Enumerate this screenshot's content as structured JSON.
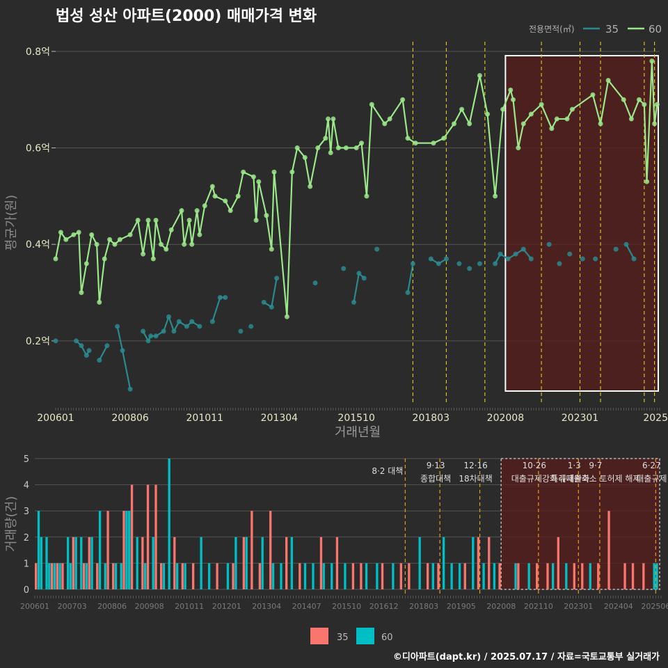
{
  "title": "법성 성산 아파트(2000) 매매가격 변화",
  "footer": "©디아파트(dapt.kr) / 2025.07.17 / 자료=국토교통부 실거래가",
  "colors": {
    "bg": "#2b2b2b",
    "grid": "#555555",
    "s35": "#2a8a8f",
    "s60": "#9be88a",
    "bar35": "#f8766d",
    "bar60": "#00bfc4",
    "policy": "#d4c11f",
    "highlight": "#5a1e1e"
  },
  "chart_data": [
    {
      "type": "line",
      "title": "법성 성산 아파트(2000) 매매가격 변화",
      "xlabel": "거래년월",
      "ylabel": "평균가(원)",
      "ylim": [
        0.07,
        0.82
      ],
      "yticks": [
        0.2,
        0.4,
        0.6,
        0.8
      ],
      "ytick_labels": [
        "0.2억",
        "0.4억",
        "0.6억",
        "0.8억"
      ],
      "xlim": [
        "2006-01",
        "2025-07"
      ],
      "xticks": [
        "2006-01",
        "2008-06",
        "2010-11",
        "2013-04",
        "2015-10",
        "2018-03",
        "2020-08",
        "2023-01",
        "2025-06"
      ],
      "xtick_labels": [
        "200601",
        "200806",
        "201011",
        "201304",
        "201510",
        "201803",
        "202008",
        "202301",
        "2025"
      ],
      "legend": {
        "title": "전용면적(㎡)",
        "position": "top-right",
        "entries": [
          "35",
          "60"
        ]
      },
      "policy_lines": [
        "2017-08",
        "2018-09",
        "2019-12",
        "2021-10",
        "2023-01",
        "2023-09",
        "2025-02",
        "2025-06"
      ],
      "highlight_range": [
        "2020-08",
        "2025-07"
      ],
      "series": [
        {
          "name": "60",
          "points": [
            [
              "2006-01",
              0.37
            ],
            [
              "2006-03",
              0.425
            ],
            [
              "2006-05",
              0.41
            ],
            [
              "2006-08",
              0.42
            ],
            [
              "2006-10",
              0.425
            ],
            [
              "2006-11",
              0.3
            ],
            [
              "2007-01",
              0.36
            ],
            [
              "2007-03",
              0.42
            ],
            [
              "2007-05",
              0.4
            ],
            [
              "2007-06",
              0.28
            ],
            [
              "2007-08",
              0.37
            ],
            [
              "2007-10",
              0.41
            ],
            [
              "2007-12",
              0.4
            ],
            [
              "2008-02",
              0.41
            ],
            [
              "2008-06",
              0.42
            ],
            [
              "2008-09",
              0.45
            ],
            [
              "2008-11",
              0.38
            ],
            [
              "2009-01",
              0.45
            ],
            [
              "2009-03",
              0.37
            ],
            [
              "2009-04",
              0.45
            ],
            [
              "2009-06",
              0.4
            ],
            [
              "2009-08",
              0.39
            ],
            [
              "2009-10",
              0.43
            ],
            [
              "2010-02",
              0.47
            ],
            [
              "2010-03",
              0.4
            ],
            [
              "2010-05",
              0.45
            ],
            [
              "2010-06",
              0.4
            ],
            [
              "2010-08",
              0.47
            ],
            [
              "2010-09",
              0.42
            ],
            [
              "2010-11",
              0.48
            ],
            [
              "2011-02",
              0.52
            ],
            [
              "2011-03",
              0.5
            ],
            [
              "2011-07",
              0.49
            ],
            [
              "2011-09",
              0.47
            ],
            [
              "2011-12",
              0.5
            ],
            [
              "2012-02",
              0.55
            ],
            [
              "2012-06",
              0.54
            ],
            [
              "2012-07",
              0.45
            ],
            [
              "2012-08",
              0.53
            ],
            [
              "2012-11",
              0.46
            ],
            [
              "2013-01",
              0.39
            ],
            [
              "2013-02",
              0.55
            ],
            [
              "2013-07",
              0.25
            ],
            [
              "2013-09",
              0.55
            ],
            [
              "2013-11",
              0.6
            ],
            [
              "2014-02",
              0.58
            ],
            [
              "2014-04",
              0.52
            ],
            [
              "2014-07",
              0.6
            ],
            [
              "2014-10",
              0.62
            ],
            [
              "2014-11",
              0.66
            ],
            [
              "2014-12",
              0.59
            ],
            [
              "2015-01",
              0.66
            ],
            [
              "2015-03",
              0.6
            ],
            [
              "2015-06",
              0.6
            ],
            [
              "2015-10",
              0.6
            ],
            [
              "2015-12",
              0.61
            ],
            [
              "2016-02",
              0.5
            ],
            [
              "2016-04",
              0.69
            ],
            [
              "2016-09",
              0.65
            ],
            [
              "2016-11",
              0.66
            ],
            [
              "2017-04",
              0.7
            ],
            [
              "2017-06",
              0.62
            ],
            [
              "2017-09",
              0.61
            ],
            [
              "2018-04",
              0.61
            ],
            [
              "2018-08",
              0.62
            ],
            [
              "2018-12",
              0.65
            ],
            [
              "2019-03",
              0.68
            ],
            [
              "2019-06",
              0.65
            ],
            [
              "2019-10",
              0.75
            ],
            [
              "2020-01",
              0.67
            ],
            [
              "2020-04",
              0.5
            ],
            [
              "2020-07",
              0.68
            ],
            [
              "2020-10",
              0.72
            ],
            [
              "2020-11",
              0.7
            ],
            [
              "2021-01",
              0.6
            ],
            [
              "2021-03",
              0.65
            ],
            [
              "2021-06",
              0.67
            ],
            [
              "2021-10",
              0.69
            ],
            [
              "2022-02",
              0.64
            ],
            [
              "2022-04",
              0.66
            ],
            [
              "2022-08",
              0.66
            ],
            [
              "2022-10",
              0.68
            ],
            [
              "2023-06",
              0.71
            ],
            [
              "2023-09",
              0.65
            ],
            [
              "2023-12",
              0.74
            ],
            [
              "2024-06",
              0.7
            ],
            [
              "2024-09",
              0.66
            ],
            [
              "2024-12",
              0.7
            ],
            [
              "2025-02",
              0.69
            ],
            [
              "2025-03",
              0.53
            ],
            [
              "2025-05",
              0.78
            ],
            [
              "2025-06",
              0.65
            ],
            [
              "2025-07",
              0.69
            ]
          ]
        },
        {
          "name": "35",
          "points": [
            [
              "2006-01",
              0.2
            ],
            [
              "2006-09",
              0.2
            ],
            [
              "2006-11",
              0.19
            ],
            [
              "2007-01",
              0.17
            ],
            [
              "2007-02",
              0.18
            ],
            [
              "2007-06",
              0.16
            ],
            [
              "2007-09",
              0.19
            ],
            [
              "2008-01",
              0.23
            ],
            [
              "2008-03",
              0.18
            ],
            [
              "2008-06",
              0.1
            ],
            [
              "2008-11",
              0.22
            ],
            [
              "2009-01",
              0.2
            ],
            [
              "2009-02",
              0.21
            ],
            [
              "2009-04",
              0.21
            ],
            [
              "2009-07",
              0.22
            ],
            [
              "2009-09",
              0.25
            ],
            [
              "2009-11",
              0.22
            ],
            [
              "2010-01",
              0.24
            ],
            [
              "2010-04",
              0.23
            ],
            [
              "2010-06",
              0.24
            ],
            [
              "2010-09",
              0.23
            ],
            [
              "2011-02",
              0.24
            ],
            [
              "2011-05",
              0.29
            ],
            [
              "2011-07",
              0.29
            ],
            [
              "2012-01",
              0.22
            ],
            [
              "2012-05",
              0.23
            ],
            [
              "2012-10",
              0.28
            ],
            [
              "2013-01",
              0.27
            ],
            [
              "2013-03",
              0.33
            ],
            [
              "2014-06",
              0.32
            ],
            [
              "2015-05",
              0.35
            ],
            [
              "2015-09",
              0.28
            ],
            [
              "2015-11",
              0.34
            ],
            [
              "2016-01",
              0.33
            ],
            [
              "2016-06",
              0.39
            ],
            [
              "2017-06",
              0.3
            ],
            [
              "2017-08",
              0.36
            ],
            [
              "2018-03",
              0.37
            ],
            [
              "2018-06",
              0.36
            ],
            [
              "2018-09",
              0.37
            ],
            [
              "2019-02",
              0.36
            ],
            [
              "2019-06",
              0.35
            ],
            [
              "2019-10",
              0.36
            ],
            [
              "2020-04",
              0.36
            ],
            [
              "2020-06",
              0.38
            ],
            [
              "2020-09",
              0.37
            ],
            [
              "2020-12",
              0.38
            ],
            [
              "2021-03",
              0.39
            ],
            [
              "2021-06",
              0.37
            ],
            [
              "2022-01",
              0.4
            ],
            [
              "2022-05",
              0.36
            ],
            [
              "2022-09",
              0.38
            ],
            [
              "2023-02",
              0.37
            ],
            [
              "2023-07",
              0.37
            ],
            [
              "2024-03",
              0.39
            ],
            [
              "2024-07",
              0.4
            ],
            [
              "2024-10",
              0.37
            ]
          ]
        }
      ]
    },
    {
      "type": "bar",
      "ylabel": "거래량(건)",
      "ylim": [
        0,
        5
      ],
      "yticks": [
        0,
        1,
        2,
        3,
        4,
        5
      ],
      "xticks": [
        "2006-01",
        "2007-03",
        "2008-06",
        "2009-08",
        "2010-11",
        "2012-01",
        "2013-04",
        "2014-07",
        "2015-10",
        "2016-12",
        "2018-03",
        "2019-05",
        "2020-08",
        "2021-10",
        "2023-01",
        "2024-04",
        "2025-06"
      ],
      "xtick_labels": [
        "200601",
        "200703",
        "200806",
        "200908",
        "201011",
        "201201",
        "201304",
        "201407",
        "201510",
        "201612",
        "201803",
        "201905",
        "202008",
        "202110",
        "202301",
        "202404",
        "202506"
      ],
      "legend": {
        "position": "bottom",
        "entries": [
          "35",
          "60"
        ]
      },
      "policy_annotations": [
        {
          "date": "2017-08",
          "label": "8·2 대책"
        },
        {
          "date": "2018-09",
          "label": "9·13 종합대책"
        },
        {
          "date": "2019-12",
          "label": "12·16 18차대책"
        },
        {
          "date": "2021-10",
          "label": "10·26 대출규제강화"
        },
        {
          "date": "2023-01",
          "label": "1·3 규제완화"
        },
        {
          "date": "2023-09",
          "label": "9·7 특례대출축소 토허제 해제"
        },
        {
          "date": "2025-06",
          "label": "6·27 대출규제"
        }
      ],
      "highlight_range": [
        "2020-08",
        "2025-07"
      ],
      "series": [
        {
          "name": "60",
          "counts": {
            "2006-02": 3,
            "2006-03": 2,
            "2006-05": 2,
            "2006-06": 1,
            "2006-08": 1,
            "2006-10": 1,
            "2007-01": 2,
            "2007-02": 1,
            "2007-04": 2,
            "2007-06": 2,
            "2007-08": 1,
            "2007-10": 2,
            "2008-01": 3,
            "2008-03": 1,
            "2008-07": 1,
            "2008-09": 1,
            "2008-11": 3,
            "2008-12": 3,
            "2009-03": 2,
            "2009-06": 1,
            "2009-09": 2,
            "2010-01": 1,
            "2010-03": 5,
            "2010-06": 1,
            "2010-09": 1,
            "2011-03": 2,
            "2011-06": 1,
            "2012-01": 1,
            "2012-04": 2,
            "2012-08": 2,
            "2013-02": 2,
            "2013-06": 1,
            "2013-09": 1,
            "2014-01": 2,
            "2014-06": 1,
            "2014-09": 1,
            "2015-01": 1,
            "2015-04": 1,
            "2015-09": 1,
            "2016-05": 1,
            "2016-09": 1,
            "2017-03": 1,
            "2018-01": 2,
            "2018-06": 1,
            "2018-10": 2,
            "2019-01": 1,
            "2019-04": 1,
            "2019-09": 2,
            "2020-01": 1,
            "2020-05": 1,
            "2021-01": 1,
            "2021-06": 1,
            "2022-03": 1,
            "2022-08": 1,
            "2023-05": 1,
            "2025-05": 1,
            "2025-06": 1
          }
        },
        {
          "name": "35",
          "counts": {
            "2006-01": 1,
            "2006-07": 1,
            "2006-09": 1,
            "2006-11": 1,
            "2007-03": 2,
            "2007-07": 1,
            "2007-09": 2,
            "2007-12": 1,
            "2008-04": 3,
            "2008-06": 1,
            "2008-10": 3,
            "2009-01": 4,
            "2009-05": 2,
            "2009-07": 4,
            "2009-10": 4,
            "2009-12": 1,
            "2010-05": 2,
            "2010-08": 1,
            "2010-12": 1,
            "2011-09": 1,
            "2012-03": 1,
            "2012-07": 2,
            "2012-10": 3,
            "2013-01": 1,
            "2013-05": 3,
            "2013-11": 2,
            "2014-04": 1,
            "2014-12": 2,
            "2015-06": 2,
            "2015-12": 1,
            "2016-03": 1,
            "2016-11": 1,
            "2017-06": 1,
            "2017-09": 1,
            "2018-04": 1,
            "2018-08": 1,
            "2019-06": 1,
            "2019-11": 2,
            "2020-03": 2,
            "2020-07": 1,
            "2021-02": 1,
            "2021-09": 1,
            "2022-01": 1,
            "2022-05": 2,
            "2022-11": 1,
            "2023-02": 1,
            "2023-08": 1,
            "2023-12": 3,
            "2024-06": 1,
            "2024-09": 1,
            "2025-01": 1
          }
        }
      ]
    }
  ]
}
